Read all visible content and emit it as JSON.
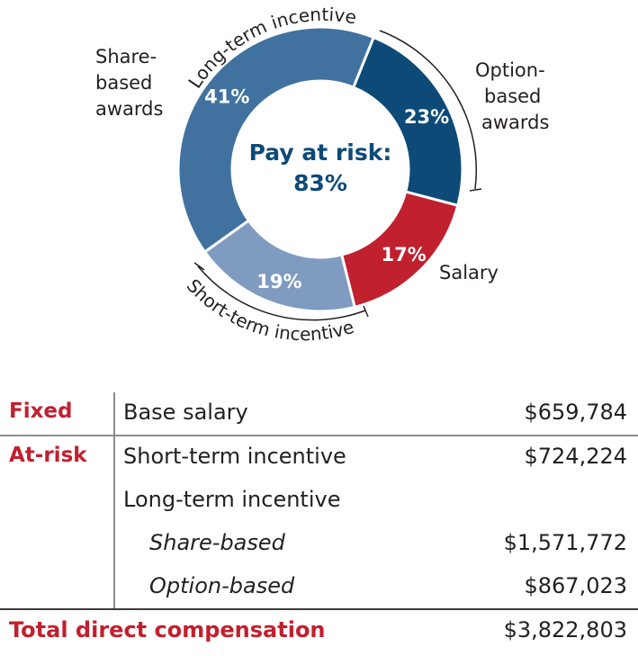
{
  "chart_data": {
    "type": "pie",
    "style": "donut",
    "center_label_line1": "Pay at risk:",
    "center_label_line2": "83%",
    "slices": [
      {
        "label": "Option-\nbased\nawards",
        "value": 23,
        "value_label": "23%",
        "color": "#0d4a78"
      },
      {
        "label": "Salary",
        "value": 17,
        "value_label": "17%",
        "color": "#c1202f"
      },
      {
        "label": "",
        "value": 19,
        "value_label": "19%",
        "color": "#7f9cc0"
      },
      {
        "label": "Share-\nbased\nawards",
        "value": 41,
        "value_label": "41%",
        "color": "#41729f"
      }
    ],
    "annotations": {
      "long_term": "Long-term incentive",
      "short_term": "Short-term incentive"
    }
  },
  "table": {
    "fixed": {
      "category": "Fixed",
      "item": "Base salary",
      "value": "$659,784"
    },
    "at_risk": {
      "category": "At-risk",
      "short_term": {
        "item": "Short-term incentive",
        "value": "$724,224"
      },
      "long_term": {
        "item": "Long-term incentive"
      },
      "share_based": {
        "item": "Share-based",
        "value": "$1,571,772"
      },
      "option_based": {
        "item": "Option-based",
        "value": "$867,023"
      }
    },
    "total": {
      "label": "Total direct compensation",
      "value": "$3,822,803"
    }
  }
}
